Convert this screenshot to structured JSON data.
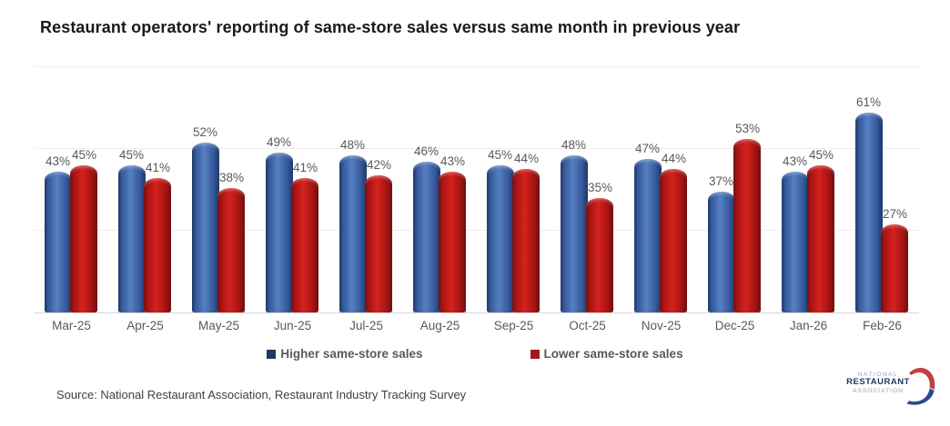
{
  "title": "Restaurant operators' reporting of same-store sales versus same month in previous year",
  "source": "Source: National Restaurant Association, Restaurant Industry Tracking Survey",
  "legend": [
    {
      "label": "Higher same-store sales",
      "color": "#1f3864"
    },
    {
      "label": "Lower same-store sales",
      "color": "#9e1b1e"
    }
  ],
  "logo": {
    "line1": "NATIONAL",
    "line2": "RESTAURANT",
    "line3": "ASSOCIATION"
  },
  "colors": {
    "higher_main": "#3e66a8",
    "lower_main": "#c01414",
    "label_gray": "#595959",
    "gridline": "#ededed",
    "axis_line": "#d6d6d6"
  },
  "chart_data": {
    "type": "bar",
    "title": "Restaurant operators' reporting of same-store sales versus same month in previous year",
    "categories": [
      "Mar-25",
      "Apr-25",
      "May-25",
      "Jun-25",
      "Jul-25",
      "Aug-25",
      "Sep-25",
      "Oct-25",
      "Nov-25",
      "Dec-25",
      "Jan-26",
      "Feb-26"
    ],
    "series": [
      {
        "name": "Higher same-store sales",
        "values": [
          43,
          45,
          52,
          49,
          48,
          46,
          45,
          48,
          47,
          37,
          43,
          61
        ],
        "shades": {
          "dark": "#1c3766",
          "mid": "#35589a",
          "light": "#5580c2"
        }
      },
      {
        "name": "Lower same-store sales",
        "values": [
          45,
          41,
          38,
          41,
          42,
          43,
          44,
          35,
          44,
          53,
          45,
          27
        ],
        "shades": {
          "dark": "#6d0f10",
          "mid": "#a61313",
          "light": "#d5221d"
        }
      }
    ],
    "value_suffix": "%",
    "xlabel": "",
    "ylabel": "",
    "ylim": [
      0,
      78
    ],
    "gridlines_pct": [
      25,
      50,
      75
    ],
    "grid": true,
    "y_axis_labels_shown": false,
    "legend_position": "bottom"
  }
}
